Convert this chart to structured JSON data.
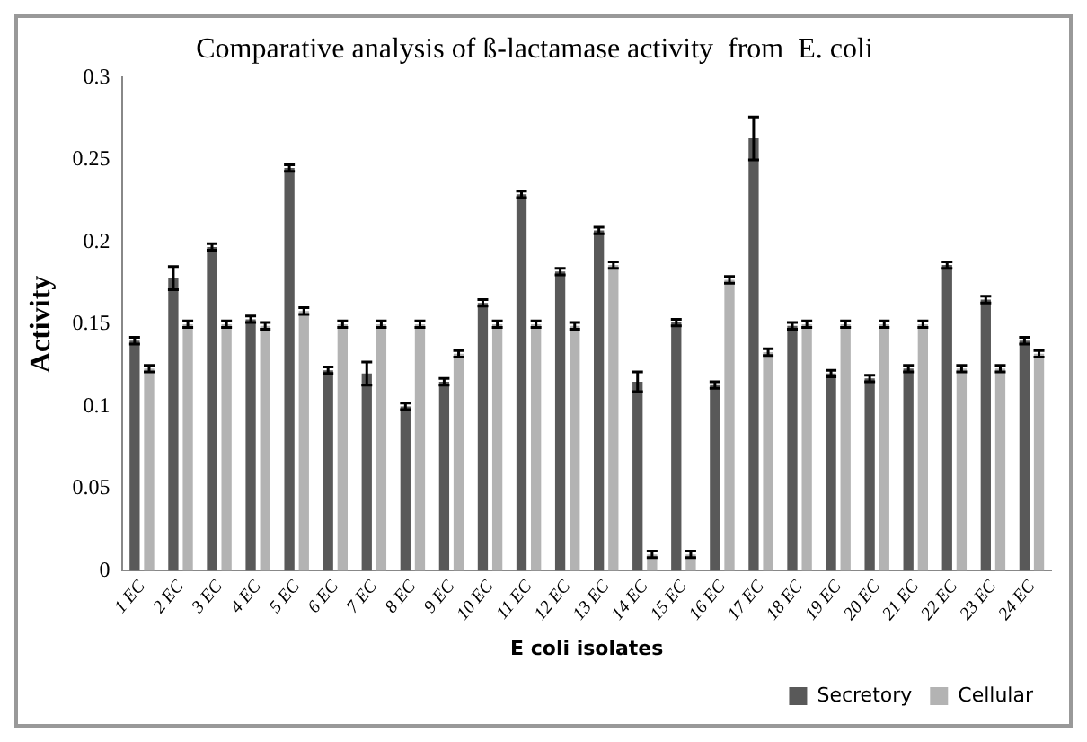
{
  "chart_data": {
    "type": "bar",
    "title": "Comparative analysis of ß-lactamase activity  from  E. coli",
    "xlabel": "E coli isolates",
    "ylabel": "Activity",
    "categories": [
      "1 EC",
      "2 EC",
      "3 EC",
      "4 EC",
      "5 EC",
      "6 EC",
      "7 EC",
      "8 EC",
      "9 EC",
      "10 EC",
      "11 EC",
      "12 EC",
      "13 EC",
      "14 EC",
      "15 EC",
      "16 EC",
      "17 EC",
      "18 EC",
      "19 EC",
      "20 EC",
      "21 EC",
      "22 EC",
      "23 EC",
      "24 EC"
    ],
    "series": [
      {
        "name": "Secretory",
        "color": "#595959",
        "values": [
          0.14,
          0.178,
          0.197,
          0.153,
          0.245,
          0.122,
          0.12,
          0.1,
          0.115,
          0.163,
          0.229,
          0.182,
          0.207,
          0.115,
          0.151,
          0.113,
          0.263,
          0.149,
          0.12,
          0.117,
          0.123,
          0.186,
          0.165,
          0.14
        ],
        "errors": [
          0.002,
          0.007,
          0.002,
          0.002,
          0.002,
          0.002,
          0.007,
          0.002,
          0.002,
          0.002,
          0.002,
          0.002,
          0.002,
          0.006,
          0.002,
          0.002,
          0.013,
          0.002,
          0.002,
          0.002,
          0.002,
          0.002,
          0.002,
          0.002
        ]
      },
      {
        "name": "Cellular",
        "color": "#b3b3b3",
        "values": [
          0.123,
          0.15,
          0.15,
          0.149,
          0.158,
          0.15,
          0.15,
          0.15,
          0.132,
          0.15,
          0.15,
          0.149,
          0.186,
          0.01,
          0.01,
          0.177,
          0.133,
          0.15,
          0.15,
          0.15,
          0.15,
          0.123,
          0.123,
          0.132
        ],
        "errors": [
          0.002,
          0.002,
          0.002,
          0.002,
          0.002,
          0.002,
          0.002,
          0.002,
          0.002,
          0.002,
          0.002,
          0.002,
          0.002,
          0.002,
          0.002,
          0.002,
          0.002,
          0.002,
          0.002,
          0.002,
          0.002,
          0.002,
          0.002,
          0.002
        ]
      }
    ],
    "ylim": [
      0,
      0.3
    ],
    "yticks": [
      0,
      0.05,
      0.1,
      0.15,
      0.2,
      0.25,
      0.3
    ],
    "grid": false,
    "legend": "bottom right"
  }
}
